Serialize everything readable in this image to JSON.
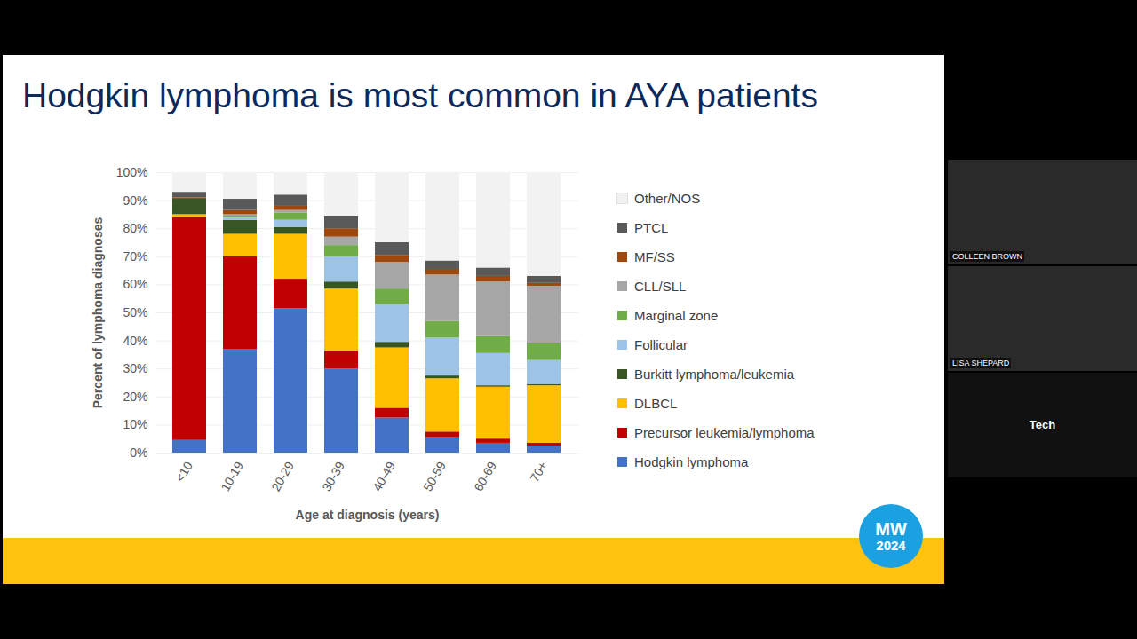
{
  "chart_data": {
    "type": "bar",
    "stacked": true,
    "title": "Hodgkin lymphoma is most common in AYA patients",
    "x_label": "Age at diagnosis (years)",
    "y_label": "Percent of lymphoma diagnoses",
    "categories": [
      "<10",
      "10-19",
      "20-29",
      "30-39",
      "40-49",
      "50-59",
      "60-69",
      "70+"
    ],
    "ylim": [
      0,
      100
    ],
    "yticks": [
      {
        "value": 0,
        "label": "0%"
      },
      {
        "value": 10,
        "label": "10%"
      },
      {
        "value": 20,
        "label": "20%"
      },
      {
        "value": 30,
        "label": "30%"
      },
      {
        "value": 40,
        "label": "40%"
      },
      {
        "value": 50,
        "label": "50%"
      },
      {
        "value": 60,
        "label": "60%"
      },
      {
        "value": 70,
        "label": "70%"
      },
      {
        "value": 80,
        "label": "80%"
      },
      {
        "value": 90,
        "label": "90%"
      },
      {
        "value": 100,
        "label": "100%"
      }
    ],
    "grid": true,
    "legend": "right",
    "series": [
      {
        "name": "Hodgkin lymphoma",
        "color": "#4472c4",
        "values": [
          4.5,
          37,
          51.5,
          30,
          12.5,
          5.5,
          3.5,
          2.5
        ]
      },
      {
        "name": "Precursor leukemia/lymphoma",
        "color": "#c00000",
        "values": [
          79.5,
          33,
          10.5,
          6.5,
          3.5,
          2,
          1.5,
          1
        ]
      },
      {
        "name": "DLBCL",
        "color": "#ffc000",
        "values": [
          1,
          8,
          16,
          22,
          21.5,
          19,
          18.5,
          20.5
        ]
      },
      {
        "name": "Burkitt lymphoma/leukemia",
        "color": "#375623",
        "values": [
          5.5,
          5,
          2.5,
          2.5,
          2,
          1,
          0.5,
          0.5
        ]
      },
      {
        "name": "Follicular",
        "color": "#9dc3e6",
        "values": [
          0,
          1,
          2.5,
          9,
          13.5,
          13.5,
          11.5,
          8.5
        ]
      },
      {
        "name": "Marginal zone",
        "color": "#70ad47",
        "values": [
          0,
          0.5,
          2.5,
          4,
          5.5,
          6,
          6,
          6
        ]
      },
      {
        "name": "CLL/SLL",
        "color": "#a6a6a6",
        "values": [
          0,
          0.5,
          1,
          3,
          9.5,
          16.5,
          19.5,
          20.5
        ]
      },
      {
        "name": "MF/SS",
        "color": "#9e480e",
        "values": [
          0.5,
          1.5,
          1.5,
          3,
          2.5,
          2,
          2,
          1
        ]
      },
      {
        "name": "PTCL",
        "color": "#595959",
        "values": [
          2,
          4,
          4,
          4.5,
          4.5,
          3,
          3,
          2.5
        ]
      },
      {
        "name": "Other/NOS",
        "color": "#f2f2f2",
        "values": [
          7,
          9.5,
          8,
          15.5,
          25,
          31.5,
          34,
          37
        ]
      }
    ]
  },
  "screen": {
    "badge": [
      "MW",
      "2024"
    ],
    "participants": [
      "COLLEEN BROWN",
      "LISA SHEPARD",
      "Tech"
    ]
  }
}
